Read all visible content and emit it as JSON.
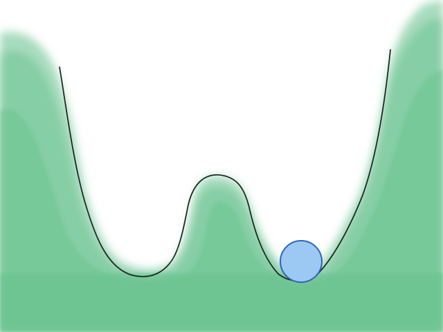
{
  "diagram": {
    "kind": "double-well potential illustration",
    "colors": {
      "background": "#ffffff",
      "fill": "#63c08a",
      "curve": "#1f2a24",
      "ball": "#9cc8f4",
      "ball_outline": "#2f63b8"
    },
    "elements": [
      "left-well",
      "central-barrier",
      "right-well",
      "ball"
    ],
    "ball_position": "right-well"
  }
}
